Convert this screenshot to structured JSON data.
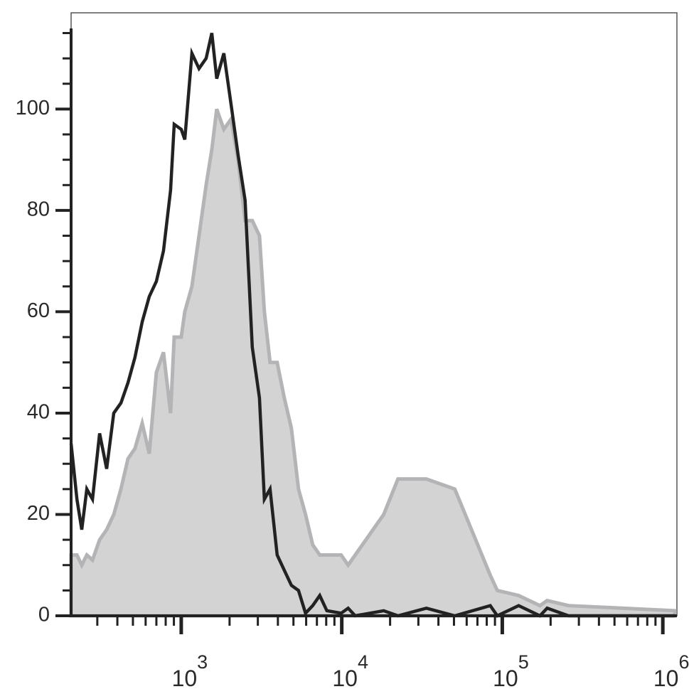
{
  "chart_data": {
    "type": "line",
    "x": [
      206,
      224,
      240,
      258,
      280,
      310,
      343,
      380,
      421,
      466,
      515,
      571,
      632,
      700,
      775,
      858,
      904,
      1000,
      1052,
      1165,
      1290,
      1429,
      1550,
      1664,
      1842,
      2042,
      2259,
      2500,
      2770,
      3070,
      3294,
      3573,
      3957,
      4385,
      4853,
      5373,
      5945,
      6590,
      7295,
      8075,
      9910,
      10960,
      12130,
      18240,
      22390,
      33650,
      50580,
      84140,
      93110,
      126400,
      171700,
      190200,
      258300,
      1189000
    ],
    "series": [
      {
        "color": "#b4b4b6",
        "fill_color": "#d3d3d3",
        "fill": true,
        "values": [
          12,
          12,
          10,
          12,
          11,
          15,
          17,
          20,
          25,
          31,
          33,
          38,
          32,
          48,
          52,
          40,
          55,
          55,
          60,
          65,
          75,
          85,
          92,
          100,
          96,
          98,
          90,
          78,
          78,
          75,
          60,
          50,
          50,
          43,
          37,
          25,
          20,
          14,
          12,
          12,
          12,
          10,
          12,
          20,
          27,
          27,
          25,
          8,
          5,
          4,
          2,
          3,
          2,
          1
        ]
      },
      {
        "color": "#222222",
        "fill": false,
        "values": [
          34,
          23,
          17,
          25,
          23,
          36,
          29,
          40,
          42,
          46,
          51,
          58,
          63,
          66,
          72,
          84,
          97,
          96,
          94,
          111,
          108,
          110,
          115,
          106,
          111,
          101,
          91,
          82,
          53,
          43,
          23,
          25,
          12,
          9,
          6,
          5,
          0.5,
          2,
          4,
          1,
          0.5,
          1.5,
          0,
          1,
          0,
          1.5,
          0,
          2,
          0,
          2,
          0,
          1.5,
          0,
          0
        ]
      }
    ],
    "xscale": "log",
    "xlim": [
      206,
      1224000
    ],
    "xticks": [
      {
        "value": 1000,
        "label": "10",
        "exponent": "3"
      },
      {
        "value": 10000,
        "label": "10",
        "exponent": "4"
      },
      {
        "value": 100000,
        "label": "10",
        "exponent": "5"
      },
      {
        "value": 1000000,
        "label": "10",
        "exponent": "6"
      }
    ],
    "xminorticks": [
      300,
      400,
      500,
      600,
      700,
      800,
      900,
      2000,
      3000,
      4000,
      5000,
      6000,
      7000,
      8000,
      9000,
      20000,
      30000,
      40000,
      50000,
      60000,
      70000,
      80000,
      90000,
      200000,
      300000,
      400000,
      500000,
      600000,
      700000,
      800000,
      900000
    ],
    "ylim": [
      0,
      119
    ],
    "yticks": [
      0,
      20,
      40,
      60,
      80,
      100
    ],
    "yminorticks": [
      5,
      10,
      15,
      25,
      30,
      35,
      45,
      50,
      55,
      65,
      70,
      75,
      85,
      90,
      95,
      105,
      110,
      115
    ]
  }
}
